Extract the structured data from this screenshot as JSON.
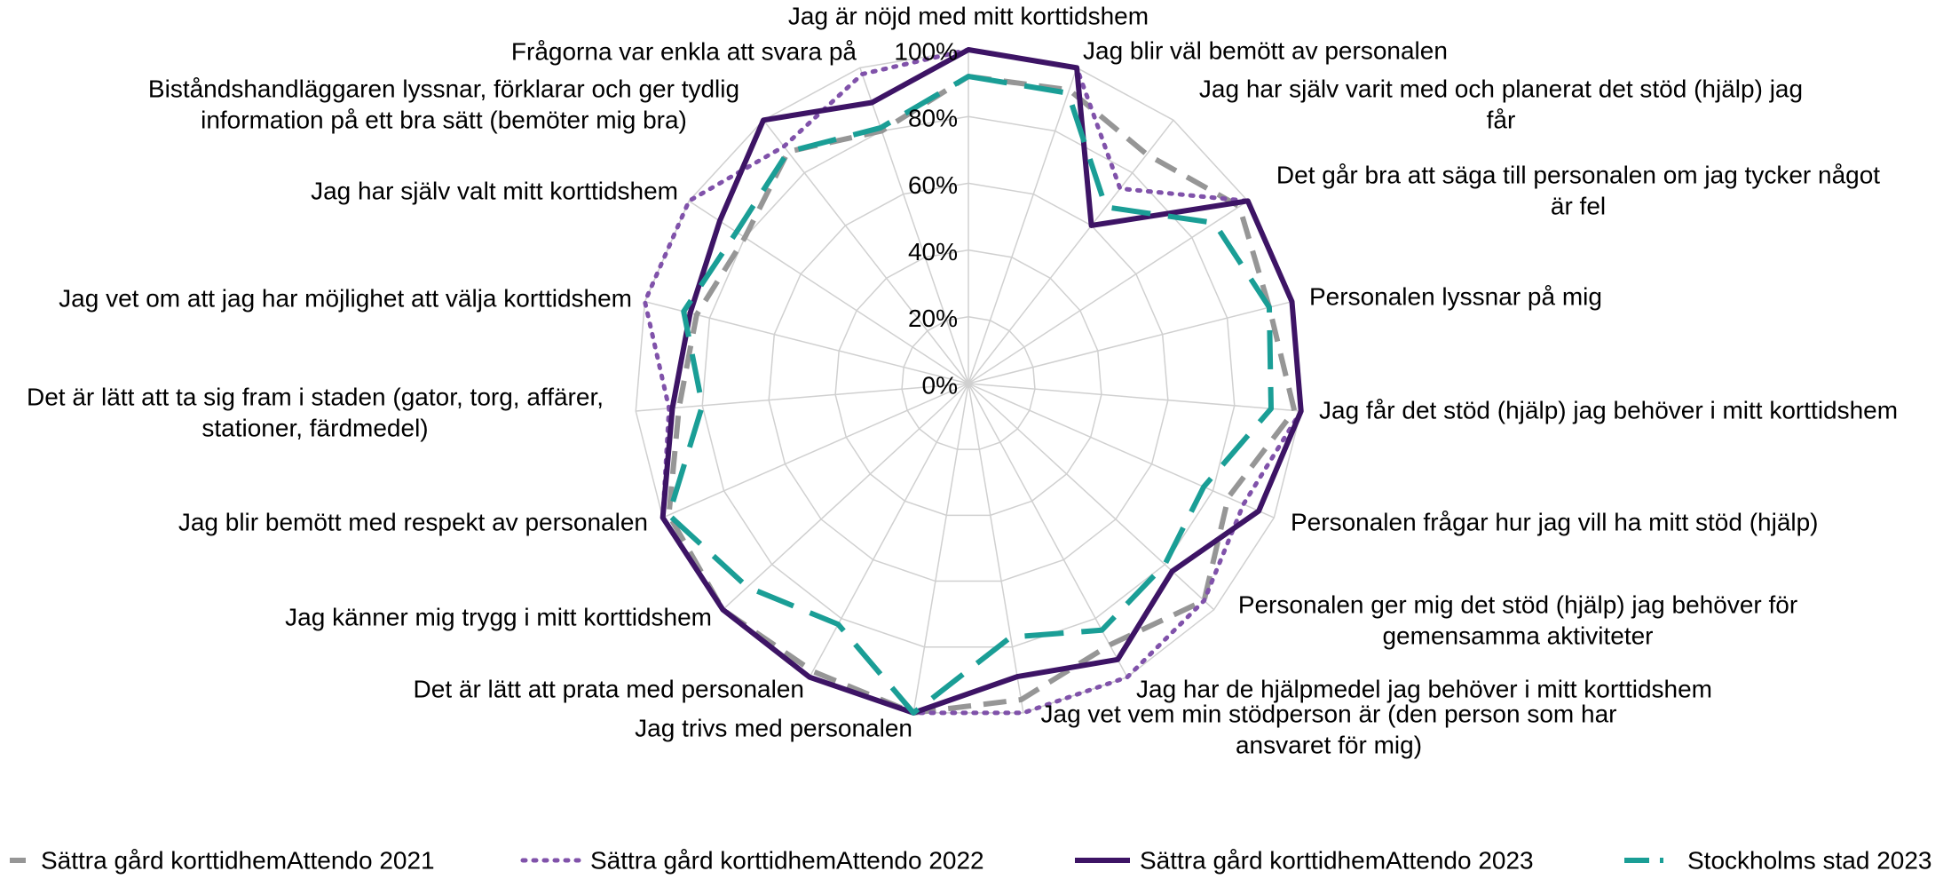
{
  "chart_data": {
    "type": "radar",
    "categories": [
      [
        "Jag är nöjd med mitt korttidshem"
      ],
      [
        "Jag blir väl bemött av personalen"
      ],
      [
        "Jag har själv varit med och planerat det stöd (hjälp) jag",
        "får"
      ],
      [
        "Det går bra att säga till personalen om jag tycker något",
        "är fel"
      ],
      [
        "Personalen lyssnar på mig"
      ],
      [
        "Jag får det stöd (hjälp) jag behöver i mitt korttidshem"
      ],
      [
        "Personalen frågar hur jag vill ha mitt stöd (hjälp)"
      ],
      [
        "Personalen ger mig det stöd (hjälp) jag behöver för",
        "gemensamma aktiviteter"
      ],
      [
        "Jag har de hjälpmedel jag behöver i mitt korttidshem"
      ],
      [
        "Jag vet vem min stödperson är (den person som har",
        "ansvaret för mig)"
      ],
      [
        "Jag trivs med personalen"
      ],
      [
        "Det är lätt att prata med personalen"
      ],
      [
        "Jag känner mig trygg i mitt korttidshem"
      ],
      [
        "Jag blir bemött med respekt av personalen"
      ],
      [
        "Det är lätt att ta sig fram i staden (gator, torg, affärer,",
        "stationer, färdmedel)"
      ],
      [
        "Jag vet om att jag har möjlighet att välja korttidshem"
      ],
      [
        "Jag har själv valt mitt korttidshem"
      ],
      [
        "Biståndshandläggaren lyssnar, förklarar och ger tydlig",
        "information på ett bra sätt (bemöter mig bra)"
      ],
      [
        "Frågorna var enkla att svara på"
      ]
    ],
    "series": [
      {
        "name": "Sättra gård korttidhemAttendo 2021",
        "color": "#969696",
        "dash": "dash",
        "values": [
          92,
          93,
          87,
          97,
          93,
          98,
          85,
          96,
          89,
          96,
          100,
          98,
          100,
          98,
          87,
          84,
          80,
          88,
          80
        ]
      },
      {
        "name": "Sättra gård korttidhemAttendo 2022",
        "color": "#8052aa",
        "dash": "dot",
        "values": [
          100,
          100,
          74,
          100,
          100,
          100,
          90,
          96,
          100,
          100,
          100,
          100,
          100,
          100,
          90,
          100,
          100,
          90,
          98
        ]
      },
      {
        "name": "Sättra gård korttidhemAttendo 2023",
        "color": "#3d1465",
        "dash": "solid",
        "values": [
          100,
          100,
          60,
          100,
          100,
          100,
          95,
          83,
          94,
          89,
          100,
          100,
          100,
          100,
          89,
          86,
          89,
          100,
          89
        ]
      },
      {
        "name": "Stockholms stad 2023",
        "color": "#1a9e96",
        "dash": "longdash",
        "values": [
          92,
          92,
          67,
          88,
          93,
          91,
          77,
          80,
          84,
          77,
          100,
          82,
          90,
          98,
          80,
          88,
          83,
          88,
          81
        ]
      }
    ],
    "ylim": [
      0,
      100
    ],
    "yticks": [
      {
        "value": 0,
        "label": "0%"
      },
      {
        "value": 20,
        "label": "20%"
      },
      {
        "value": 40,
        "label": "40%"
      },
      {
        "value": 60,
        "label": "60%"
      },
      {
        "value": 80,
        "label": "80%"
      },
      {
        "value": 100,
        "label": "100%"
      }
    ],
    "grid": true,
    "legend": "bottom"
  }
}
